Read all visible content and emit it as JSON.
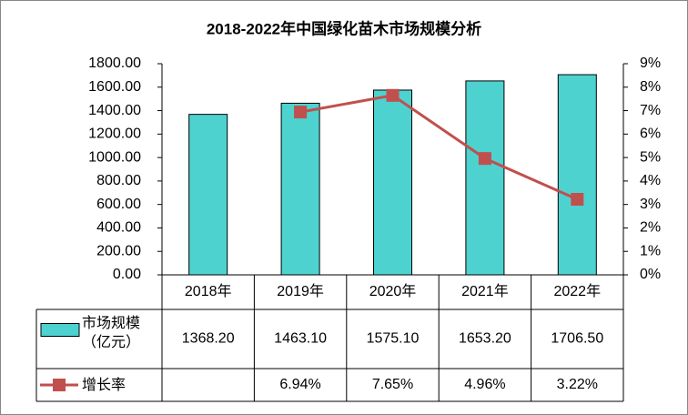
{
  "chart_data": {
    "type": "bar_line",
    "title": "2018-2022年中国绿化苗木市场规模分析",
    "categories": [
      "2018年",
      "2019年",
      "2020年",
      "2021年",
      "2022年"
    ],
    "series": [
      {
        "name": "市场规模（亿元）",
        "type": "bar",
        "color": "#4dd2d0",
        "values": [
          1368.2,
          1463.1,
          1575.1,
          1653.2,
          1706.5
        ],
        "value_labels": [
          "1368.20",
          "1463.10",
          "1575.10",
          "1653.20",
          "1706.50"
        ]
      },
      {
        "name": "增长率",
        "type": "line",
        "axis": "y2",
        "color": "#c0504d",
        "values": [
          null,
          6.94,
          7.65,
          4.96,
          3.22
        ],
        "value_labels": [
          null,
          "6.94%",
          "7.65%",
          "4.96%",
          "3.22%"
        ]
      }
    ],
    "ylim": [
      0,
      1800
    ],
    "yticks": [
      {
        "value": 0,
        "label": "0.00"
      },
      {
        "value": 200,
        "label": "200.00"
      },
      {
        "value": 400,
        "label": "400.00"
      },
      {
        "value": 600,
        "label": "600.00"
      },
      {
        "value": 800,
        "label": "800.00"
      },
      {
        "value": 1000,
        "label": "1000.00"
      },
      {
        "value": 1200,
        "label": "1200.00"
      },
      {
        "value": 1400,
        "label": "1400.00"
      },
      {
        "value": 1600,
        "label": "1600.00"
      },
      {
        "value": 1800,
        "label": "1800.00"
      }
    ],
    "y2lim": [
      0,
      9
    ],
    "y2ticks": [
      {
        "value": 0,
        "label": "0%"
      },
      {
        "value": 1,
        "label": "1%"
      },
      {
        "value": 2,
        "label": "2%"
      },
      {
        "value": 3,
        "label": "3%"
      },
      {
        "value": 4,
        "label": "4%"
      },
      {
        "value": 5,
        "label": "5%"
      },
      {
        "value": 6,
        "label": "6%"
      },
      {
        "value": 7,
        "label": "7%"
      },
      {
        "value": 8,
        "label": "8%"
      },
      {
        "value": 9,
        "label": "9%"
      }
    ],
    "grid": false
  }
}
